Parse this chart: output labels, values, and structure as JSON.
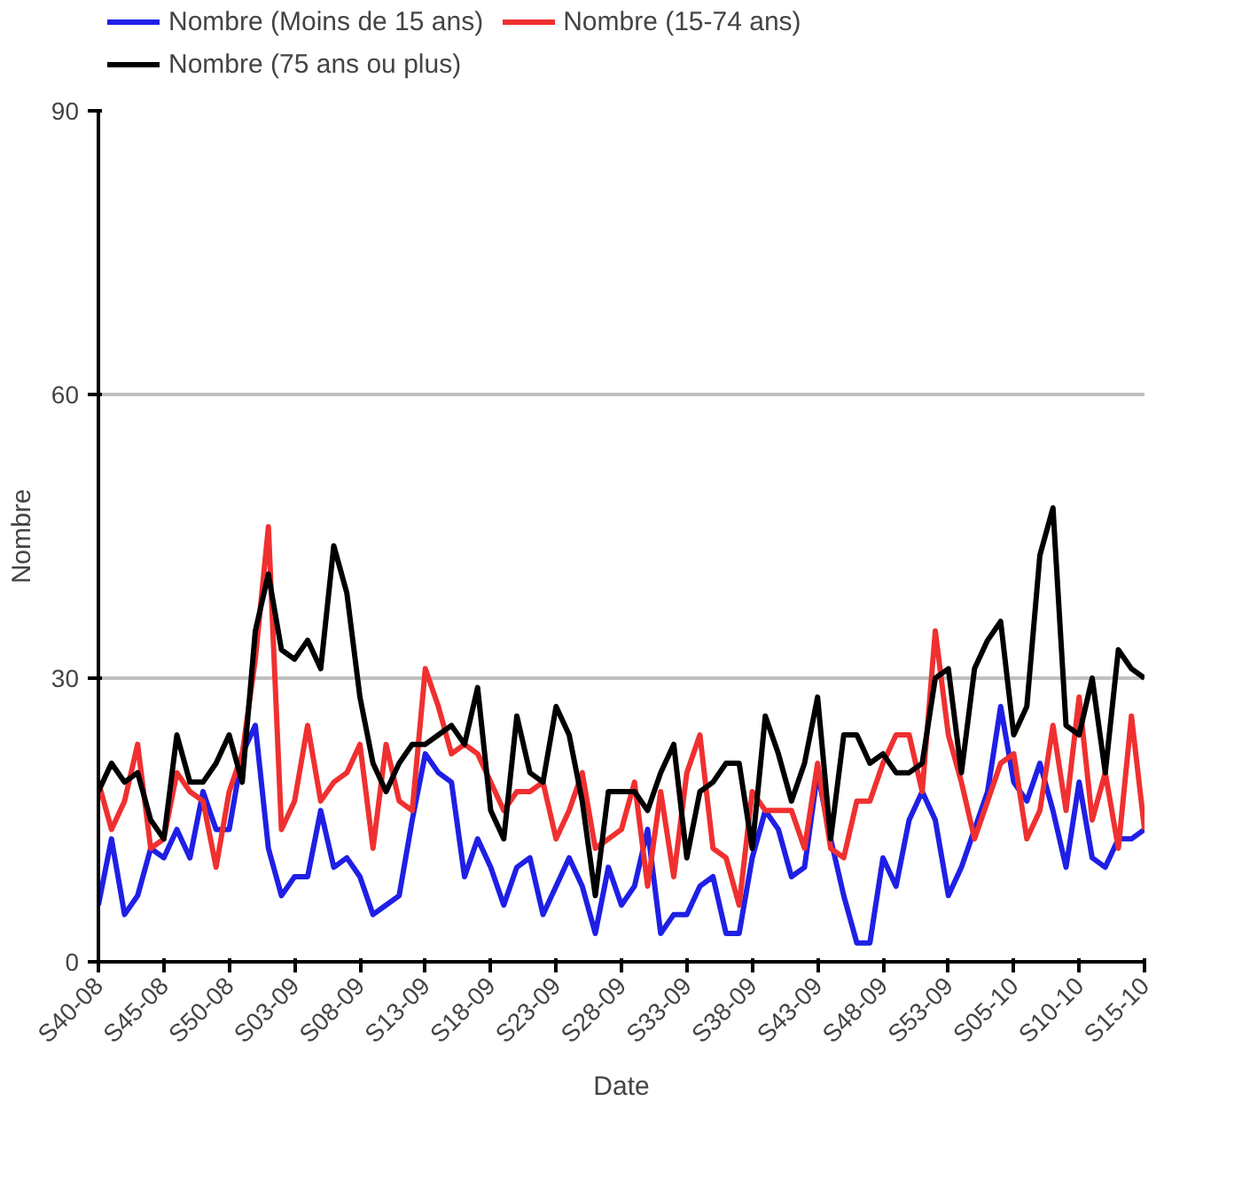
{
  "chart_data": {
    "type": "line",
    "xlabel": "Date",
    "ylabel": "Nombre",
    "categories": [
      "S40-08",
      null,
      null,
      null,
      null,
      "S45-08",
      null,
      null,
      null,
      null,
      "S50-08",
      null,
      null,
      null,
      null,
      "S03-09",
      null,
      null,
      null,
      null,
      "S08-09",
      null,
      null,
      null,
      null,
      "S13-09",
      null,
      null,
      null,
      null,
      "S18-09",
      null,
      null,
      null,
      null,
      "S23-09",
      null,
      null,
      null,
      null,
      "S28-09",
      null,
      null,
      null,
      null,
      "S33-09",
      null,
      null,
      null,
      null,
      "S38-09",
      null,
      null,
      null,
      null,
      "S43-09",
      null,
      null,
      null,
      null,
      "S48-09",
      null,
      null,
      null,
      null,
      "S53-09",
      null,
      null,
      null,
      null,
      "S05-10",
      null,
      null,
      null,
      null,
      "S10-10",
      null,
      null,
      null,
      null,
      "S15-10"
    ],
    "series": [
      {
        "name": "Nombre (Moins de 15 ans)",
        "color": "#1f1fe6",
        "values": [
          6,
          13,
          5,
          7,
          12,
          11,
          14,
          11,
          18,
          14,
          14,
          22,
          25,
          12,
          7,
          9,
          9,
          16,
          10,
          11,
          9,
          5,
          6,
          7,
          15,
          22,
          20,
          19,
          9,
          13,
          10,
          6,
          10,
          11,
          5,
          8,
          11,
          8,
          3,
          10,
          6,
          8,
          14,
          3,
          5,
          5,
          8,
          9,
          3,
          3,
          11,
          16,
          14,
          9,
          10,
          20,
          13,
          7,
          2,
          2,
          11,
          8,
          15,
          18,
          15,
          7,
          10,
          14,
          18,
          27,
          19,
          17,
          21,
          16,
          10,
          19,
          11,
          10,
          13,
          13,
          14
        ]
      },
      {
        "name": "Nombre (15-74 ans)",
        "color": "#f03030",
        "values": [
          19,
          14,
          17,
          23,
          12,
          13,
          20,
          18,
          17,
          10,
          18,
          22,
          32,
          46,
          14,
          17,
          25,
          17,
          19,
          20,
          23,
          12,
          23,
          17,
          16,
          31,
          27,
          22,
          23,
          22,
          19,
          16,
          18,
          18,
          19,
          13,
          16,
          20,
          12,
          13,
          14,
          19,
          8,
          18,
          9,
          20,
          24,
          12,
          11,
          6,
          18,
          16,
          16,
          16,
          12,
          21,
          12,
          11,
          17,
          17,
          21,
          24,
          24,
          18,
          35,
          24,
          19,
          13,
          17,
          21,
          22,
          13,
          16,
          25,
          16,
          28,
          15,
          20,
          12,
          26,
          14
        ]
      },
      {
        "name": "Nombre (75 ans ou plus)",
        "color": "#000000",
        "values": [
          18,
          21,
          19,
          20,
          15,
          13,
          24,
          19,
          19,
          21,
          24,
          19,
          35,
          41,
          33,
          32,
          34,
          31,
          44,
          39,
          28,
          21,
          18,
          21,
          23,
          23,
          24,
          25,
          23,
          29,
          16,
          13,
          26,
          20,
          19,
          27,
          24,
          17,
          7,
          18,
          18,
          18,
          16,
          20,
          23,
          11,
          18,
          19,
          21,
          21,
          12,
          26,
          22,
          17,
          21,
          28,
          13,
          24,
          24,
          21,
          22,
          20,
          20,
          21,
          30,
          31,
          20,
          31,
          34,
          36,
          24,
          27,
          43,
          48,
          25,
          24,
          30,
          20,
          33,
          31,
          30
        ]
      }
    ],
    "ylim": [
      0,
      90
    ],
    "yticks": [
      0,
      30,
      60,
      90
    ],
    "grid": "y",
    "legend": "top",
    "marker": "none",
    "line_style": "solid"
  }
}
